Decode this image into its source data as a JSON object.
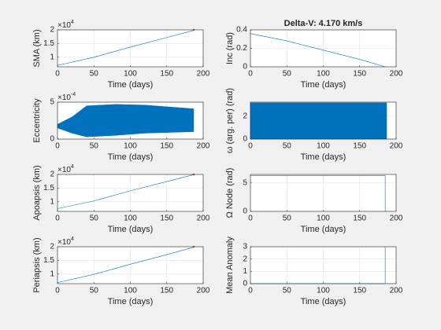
{
  "chart_data": [
    {
      "type": "line",
      "ylabel": "SMA (km)",
      "xlabel": "Time (days)",
      "y_exponent_base": "×10",
      "y_exponent": "4",
      "x": [
        0,
        50,
        100,
        150,
        187
      ],
      "values": [
        7000,
        10000,
        13700,
        17200,
        19800
      ],
      "color": "#0072bd",
      "marker": {
        "x": 187,
        "y": 20000,
        "color": "#d95319"
      },
      "xlim": [
        0,
        200
      ],
      "xticks": [
        0,
        50,
        100,
        150,
        200
      ],
      "ylim": [
        6500,
        20000
      ],
      "yticks": [
        {
          "value": 10000,
          "label": "1"
        },
        {
          "value": 15000,
          "label": "1.5"
        },
        {
          "value": 20000,
          "label": "2"
        }
      ],
      "grid": true
    },
    {
      "type": "line",
      "title": "Delta-V: 4.170 km/s",
      "ylabel": "Inc (rad)",
      "xlabel": "Time (days)",
      "x": [
        0,
        50,
        100,
        150,
        185
      ],
      "values": [
        0.36,
        0.28,
        0.18,
        0.08,
        0
      ],
      "color": "#0072bd",
      "xlim": [
        0,
        200
      ],
      "xticks": [
        0,
        50,
        100,
        150,
        200
      ],
      "ylim": [
        0,
        0.4
      ],
      "yticks": [
        0,
        0.2,
        0.4
      ],
      "grid": true
    },
    {
      "type": "band",
      "ylabel": "Eccentricity",
      "xlabel": "Time (days)",
      "y_exponent_base": "×10",
      "y_exponent": "-4",
      "x": [
        0,
        20,
        40,
        80,
        120,
        187
      ],
      "upper": [
        0.0002,
        0.0003,
        0.00045,
        0.00047,
        0.00046,
        0.00041
      ],
      "lower": [
        0.00015,
        8e-05,
        3e-05,
        5e-05,
        8e-05,
        0.0001
      ],
      "color": "#0072bd",
      "xlim": [
        0,
        200
      ],
      "xticks": [
        0,
        50,
        100,
        150,
        200
      ],
      "ylim": [
        0,
        0.0005
      ],
      "yticks": [
        0,
        {
          "value": 0.0005,
          "label": "5"
        }
      ],
      "grid": true
    },
    {
      "type": "band",
      "ylabel": "ω (arg. per) (rad)",
      "xlabel": "Time (days)",
      "x": [
        0,
        187
      ],
      "upper": [
        3.14,
        3.14
      ],
      "lower": [
        0,
        0
      ],
      "color": "#0072bd",
      "xlim": [
        0,
        200
      ],
      "xticks": [
        0,
        50,
        100,
        150,
        200
      ],
      "ylim": [
        0,
        3.2
      ],
      "yticks": [
        0,
        2
      ],
      "grid": true
    },
    {
      "type": "line",
      "ylabel": "Apoapsis (km)",
      "xlabel": "Time (days)",
      "y_exponent_base": "×10",
      "y_exponent": "4",
      "x": [
        0,
        50,
        100,
        150,
        187
      ],
      "values": [
        7500,
        10300,
        14000,
        17400,
        19900
      ],
      "color": "#0072bd",
      "marker": {
        "x": 187,
        "y": 20000,
        "color": "#d95319"
      },
      "xlim": [
        0,
        200
      ],
      "xticks": [
        0,
        50,
        100,
        150,
        200
      ],
      "ylim": [
        6500,
        20000
      ],
      "yticks": [
        {
          "value": 10000,
          "label": "1"
        },
        {
          "value": 15000,
          "label": "1.5"
        },
        {
          "value": 20000,
          "label": "2"
        }
      ],
      "grid": true
    },
    {
      "type": "line",
      "ylabel": "Ω Node (rad)",
      "xlabel": "Time (days)",
      "x": [
        0,
        185,
        185,
        187
      ],
      "values": [
        6.28,
        6.28,
        0,
        0
      ],
      "color": "#0072bd",
      "xlim": [
        0,
        200
      ],
      "xticks": [
        0,
        50,
        100,
        150,
        200
      ],
      "ylim": [
        0,
        6.5
      ],
      "yticks": [
        0,
        5
      ],
      "grid": true
    },
    {
      "type": "line",
      "ylabel": "Periapsis (km)",
      "xlabel": "Time (days)",
      "y_exponent_base": "×10",
      "y_exponent": "4",
      "x": [
        0,
        50,
        100,
        150,
        187
      ],
      "values": [
        6900,
        9900,
        13600,
        17100,
        19800
      ],
      "color": "#0072bd",
      "marker": {
        "x": 187,
        "y": 20000,
        "color": "#d95319"
      },
      "xlim": [
        0,
        200
      ],
      "xticks": [
        0,
        50,
        100,
        150,
        200
      ],
      "ylim": [
        6500,
        20000
      ],
      "yticks": [
        {
          "value": 10000,
          "label": "1"
        },
        {
          "value": 15000,
          "label": "1.5"
        },
        {
          "value": 20000,
          "label": "2"
        }
      ],
      "grid": true
    },
    {
      "type": "line",
      "ylabel": "Mean Anomaly",
      "xlabel": "Time (days)",
      "x": [
        0,
        185,
        185
      ],
      "values": [
        0,
        0,
        3
      ],
      "color": "#0072bd",
      "xlim": [
        0,
        200
      ],
      "xticks": [
        0,
        50,
        100,
        150,
        200
      ],
      "ylim": [
        0,
        3
      ],
      "yticks": [
        0,
        1,
        2,
        3
      ],
      "grid": true
    }
  ]
}
